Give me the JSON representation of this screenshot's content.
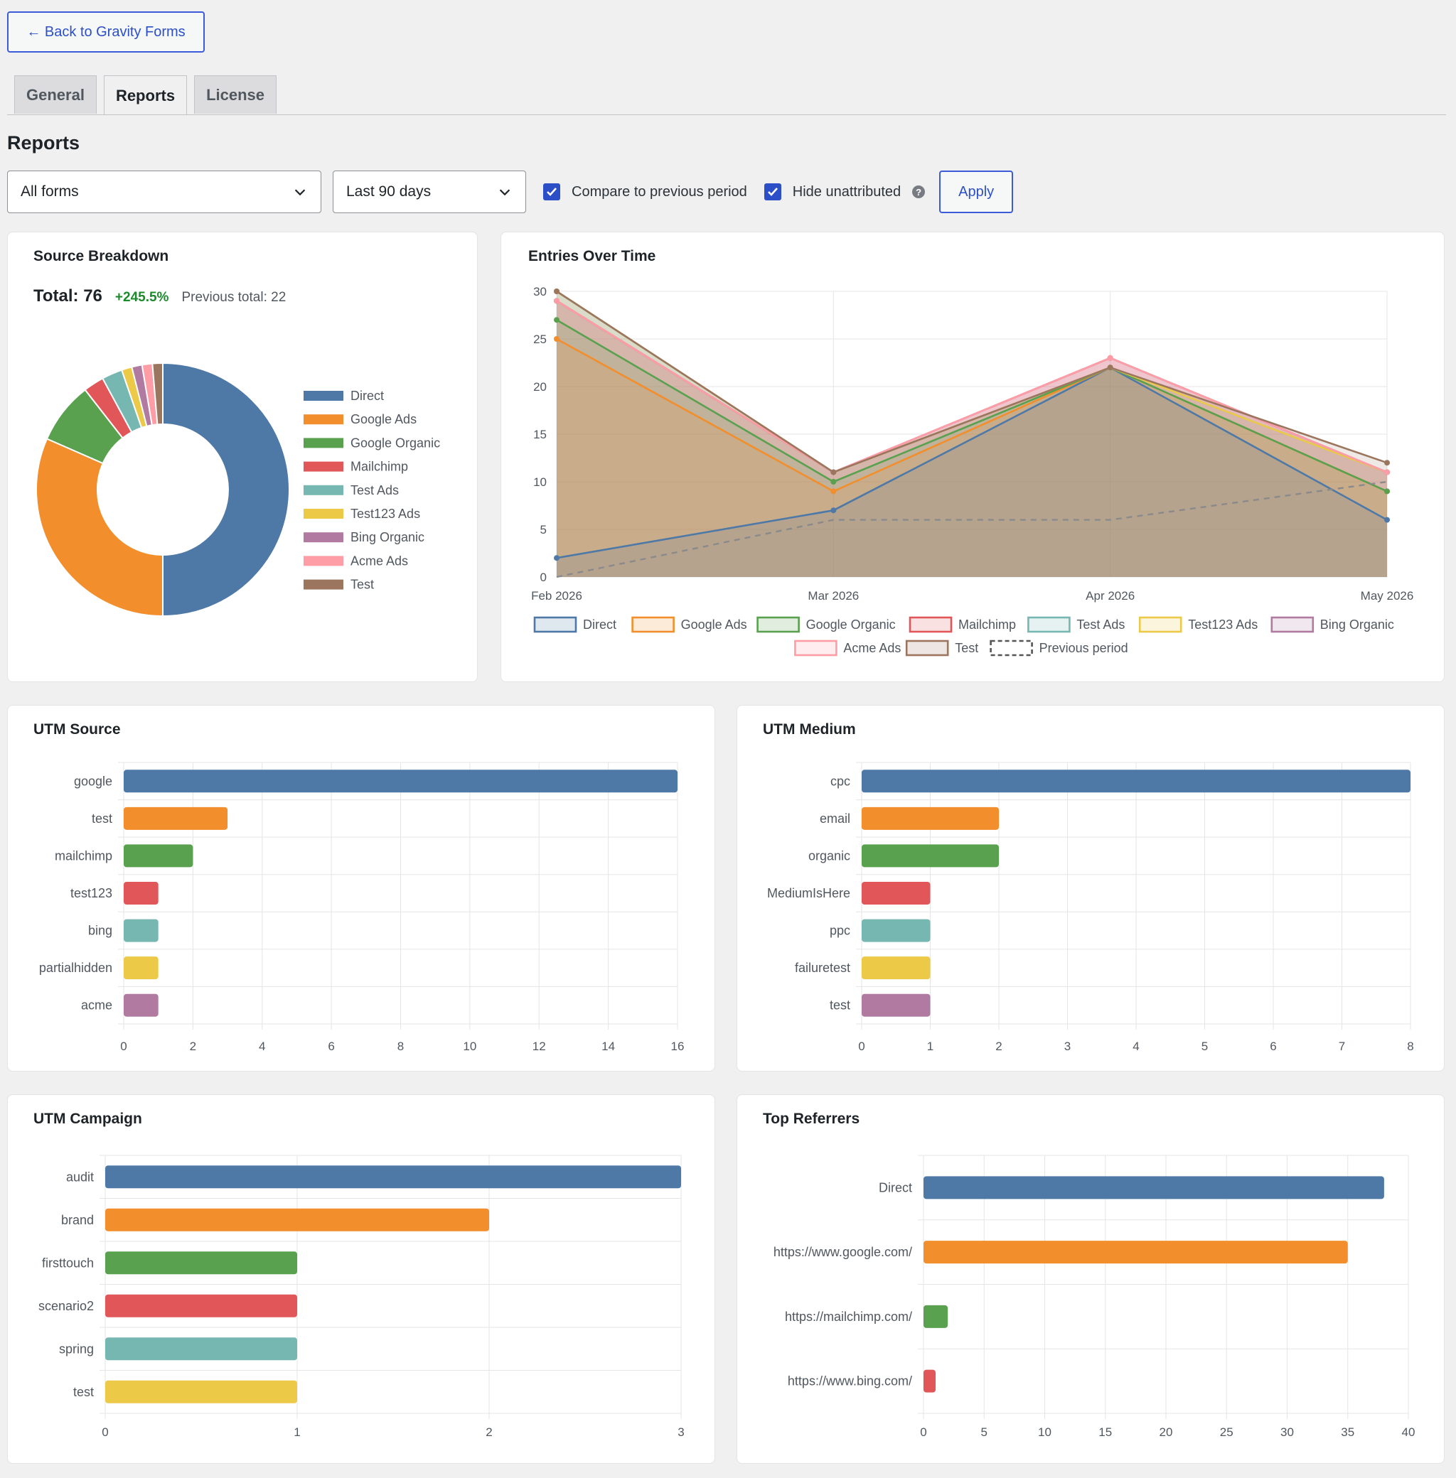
{
  "nav": {
    "back_label": "← Back to Gravity Forms",
    "tabs": [
      "General",
      "Reports",
      "License"
    ],
    "active_tab": "Reports"
  },
  "page": {
    "title": "Reports"
  },
  "filters": {
    "form_select": "All forms",
    "period_select": "Last 90 days",
    "compare_label": "Compare to previous period",
    "compare_checked": true,
    "hide_label": "Hide unattributed",
    "hide_checked": true,
    "help_icon": "?",
    "apply_label": "Apply"
  },
  "source_breakdown": {
    "title": "Source Breakdown",
    "total_label": "Total: 76",
    "change": "+245.5%",
    "previous_label": "Previous total: 22"
  },
  "entries_over_time": {
    "title": "Entries Over Time"
  },
  "colors": {
    "blue": "#4e79a7",
    "orange": "#f28e2b",
    "green": "#59a14f",
    "red": "#e15759",
    "teal": "#76b7b2",
    "yellow": "#edc948",
    "purple": "#b07aa1",
    "pink": "#ff9da7",
    "brown": "#9c755f"
  },
  "chart_data": [
    {
      "type": "pie",
      "title": "Source Breakdown",
      "labels": [
        "Direct",
        "Google Ads",
        "Google Organic",
        "Mailchimp",
        "Test Ads",
        "Test123 Ads",
        "Bing Organic",
        "Acme Ads",
        "Test"
      ],
      "values": [
        38,
        24,
        6,
        2,
        2,
        1,
        1,
        1,
        1
      ],
      "colors": [
        "#4e79a7",
        "#f28e2b",
        "#59a14f",
        "#e15759",
        "#76b7b2",
        "#edc948",
        "#b07aa1",
        "#ff9da7",
        "#9c755f"
      ],
      "legend": "right"
    },
    {
      "type": "area",
      "title": "Entries Over Time",
      "categories": [
        "Feb 2026",
        "Mar 2026",
        "Apr 2026",
        "May 2026"
      ],
      "ylim": [
        0,
        30
      ],
      "yticks": [
        0,
        5,
        10,
        15,
        20,
        25,
        30
      ],
      "stacked_display": true,
      "series": [
        {
          "name": "Direct",
          "color": "#4e79a7",
          "values": [
            2,
            7,
            22,
            6
          ]
        },
        {
          "name": "Google Ads",
          "color": "#f28e2b",
          "values": [
            25,
            9,
            22,
            9
          ]
        },
        {
          "name": "Google Organic",
          "color": "#59a14f",
          "values": [
            27,
            10,
            22,
            9
          ]
        },
        {
          "name": "Mailchimp",
          "color": "#e15759",
          "values": [
            29,
            11,
            23,
            11
          ]
        },
        {
          "name": "Test Ads",
          "color": "#76b7b2",
          "values": [
            30,
            11,
            22,
            11
          ]
        },
        {
          "name": "Test123 Ads",
          "color": "#edc948",
          "values": [
            30,
            11,
            22,
            11
          ]
        },
        {
          "name": "Bing Organic",
          "color": "#b07aa1",
          "values": [
            29,
            11,
            23,
            11
          ]
        },
        {
          "name": "Acme Ads",
          "color": "#ff9da7",
          "values": [
            29,
            11,
            23,
            11
          ]
        },
        {
          "name": "Test",
          "color": "#9c755f",
          "values": [
            30,
            11,
            22,
            12
          ]
        },
        {
          "name": "Previous period",
          "color": "#8a8a8a",
          "dashed": true,
          "values": [
            0,
            6,
            6,
            10
          ]
        }
      ],
      "legend": "bottom"
    },
    {
      "type": "bar",
      "orientation": "horizontal",
      "title": "UTM Source",
      "categories": [
        "google",
        "test",
        "mailchimp",
        "test123",
        "bing",
        "partialhidden",
        "acme"
      ],
      "values": [
        16,
        3,
        2,
        1,
        1,
        1,
        1
      ],
      "xlim": [
        0,
        16
      ],
      "xticks": [
        0,
        2,
        4,
        6,
        8,
        10,
        12,
        14,
        16
      ]
    },
    {
      "type": "bar",
      "orientation": "horizontal",
      "title": "UTM Medium",
      "categories": [
        "cpc",
        "email",
        "organic",
        "MediumIsHere",
        "ppc",
        "failuretest",
        "test"
      ],
      "values": [
        8,
        2,
        2,
        1,
        1,
        1,
        1
      ],
      "xlim": [
        0,
        8
      ],
      "xticks": [
        0,
        1,
        2,
        3,
        4,
        5,
        6,
        7,
        8
      ]
    },
    {
      "type": "bar",
      "orientation": "horizontal",
      "title": "UTM Campaign",
      "categories": [
        "audit",
        "brand",
        "firsttouch",
        "scenario2",
        "spring",
        "test"
      ],
      "values": [
        3,
        2,
        1,
        1,
        1,
        1
      ],
      "xlim": [
        0,
        3
      ],
      "xticks": [
        0,
        1,
        2,
        3
      ]
    },
    {
      "type": "bar",
      "orientation": "horizontal",
      "title": "Top Referrers",
      "categories": [
        "Direct",
        "https://www.google.com/",
        "https://mailchimp.com/",
        "https://www.bing.com/"
      ],
      "values": [
        38,
        35,
        2,
        1
      ],
      "xlim": [
        0,
        40
      ],
      "xticks": [
        0,
        5,
        10,
        15,
        20,
        25,
        30,
        35,
        40
      ]
    }
  ]
}
